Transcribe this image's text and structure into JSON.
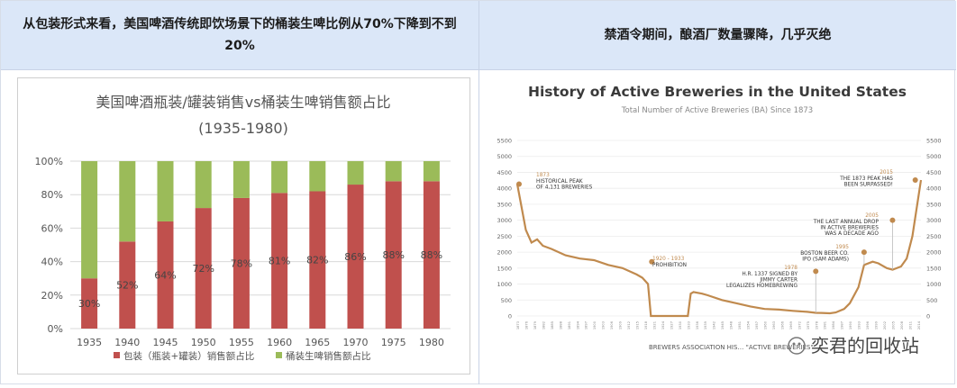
{
  "header": {
    "left_text": "从包装形式来看，美国啤酒传统即饮场景下的桶装生啤比例从70%下降到不到20%",
    "right_text": "禁酒令期间，酿酒厂数量骤降，几乎灭绝"
  },
  "colors": {
    "packaged": "#c0504d",
    "draft": "#9bbb59",
    "breweries_line": "#c08a4e",
    "header_bg": "#dbe7f8"
  },
  "chart_data": [
    {
      "type": "bar",
      "stacked": true,
      "title": "美国啤酒瓶装/罐装销售vs桶装生啤销售额占比",
      "subtitle": "(1935-1980)",
      "categories": [
        "1935",
        "1940",
        "1945",
        "1950",
        "1955",
        "1960",
        "1965",
        "1970",
        "1975",
        "1980"
      ],
      "series": [
        {
          "name": "包装（瓶装+罐装）销售额占比",
          "values": [
            30,
            52,
            64,
            72,
            78,
            81,
            82,
            86,
            88,
            88
          ]
        },
        {
          "name": "桶装生啤销售额占比",
          "values": [
            70,
            48,
            36,
            28,
            22,
            19,
            18,
            14,
            12,
            12
          ]
        }
      ],
      "data_labels": [
        "30%",
        "52%",
        "64%",
        "72%",
        "78%",
        "81%",
        "82%",
        "86%",
        "88%",
        "88%"
      ],
      "yticks": [
        "0%",
        "20%",
        "40%",
        "60%",
        "80%",
        "100%"
      ],
      "ylim": [
        0,
        100
      ],
      "grid": true,
      "legend_position": "bottom"
    },
    {
      "type": "line",
      "title": "History of Active Breweries in the United States",
      "subtitle": "Total Number of Active Breweries (BA) Since 1873",
      "x": [
        1873,
        1876,
        1878,
        1880,
        1882,
        1885,
        1890,
        1895,
        1900,
        1905,
        1910,
        1915,
        1917,
        1919,
        1920,
        1925,
        1933,
        1934,
        1935,
        1938,
        1940,
        1945,
        1950,
        1955,
        1960,
        1965,
        1970,
        1975,
        1978,
        1980,
        1983,
        1985,
        1988,
        1990,
        1993,
        1995,
        1998,
        2000,
        2003,
        2005,
        2008,
        2010,
        2012,
        2015
      ],
      "y": [
        4131,
        2700,
        2300,
        2400,
        2200,
        2100,
        1900,
        1800,
        1750,
        1600,
        1500,
        1300,
        1200,
        1000,
        0,
        0,
        0,
        700,
        750,
        700,
        650,
        500,
        400,
        300,
        220,
        200,
        160,
        130,
        100,
        95,
        85,
        110,
        220,
        400,
        900,
        1600,
        1700,
        1650,
        1500,
        1450,
        1550,
        1800,
        2500,
        4260
      ],
      "yticks": [
        "0",
        "500",
        "1000",
        "1500",
        "2000",
        "2500",
        "3000",
        "3500",
        "4000",
        "4500",
        "5000",
        "5500"
      ],
      "ylim": [
        0,
        5500
      ],
      "annotations": [
        {
          "year": "1873",
          "text1": "HISTORICAL PEAK",
          "text2": "OF 4,131 BREWERIES"
        },
        {
          "year": "1920 - 1933",
          "text1": "PROHIBITION",
          "text2": ""
        },
        {
          "year": "1978",
          "text1": "H.R. 1337 SIGNED BY",
          "text2": "JIMMY CARTER",
          "text3": "LEGALIZES HOMEBREWING"
        },
        {
          "year": "1995",
          "text1": "BOSTON BEER CO.",
          "text2": "IPO (SAM ADAMS)"
        },
        {
          "year": "2005",
          "text1": "THE LAST ANNUAL DROP",
          "text2": "IN ACTIVE BREWERIES",
          "text3": "WAS A DECADE AGO"
        },
        {
          "year": "2015",
          "text1": "THE 1873 PEAK HAS",
          "text2": "BEEN SURPASSED!"
        }
      ],
      "source": "BREWERS ASSOCIATION HIS… \"ACTIVE BREWERIES\""
    }
  ],
  "watermark": "奕君的回收站"
}
